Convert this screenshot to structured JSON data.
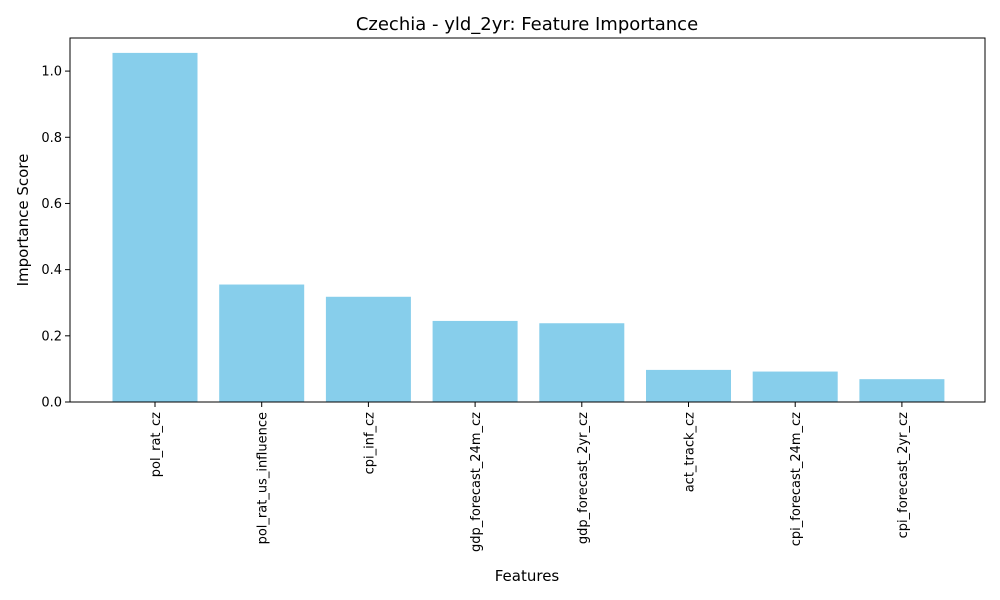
{
  "chart_data": {
    "type": "bar",
    "title": "Czechia - yld_2yr: Feature Importance",
    "xlabel": "Features",
    "ylabel": "Importance Score",
    "categories": [
      "pol_rat_cz",
      "pol_rat_us_influence",
      "cpi_inf_cz",
      "gdp_forecast_24m_cz",
      "gdp_forecast_2yr_cz",
      "act_track_cz",
      "cpi_forecast_24m_cz",
      "cpi_forecast_2yr_cz"
    ],
    "values": [
      1.055,
      0.355,
      0.318,
      0.245,
      0.238,
      0.097,
      0.092,
      0.069
    ],
    "ylim": [
      0,
      1.1
    ],
    "yticks": [
      "0.0",
      "0.2",
      "0.4",
      "0.6",
      "0.8",
      "1.0"
    ],
    "bar_color": "#87CEEB",
    "grid": false,
    "legend": "none"
  }
}
